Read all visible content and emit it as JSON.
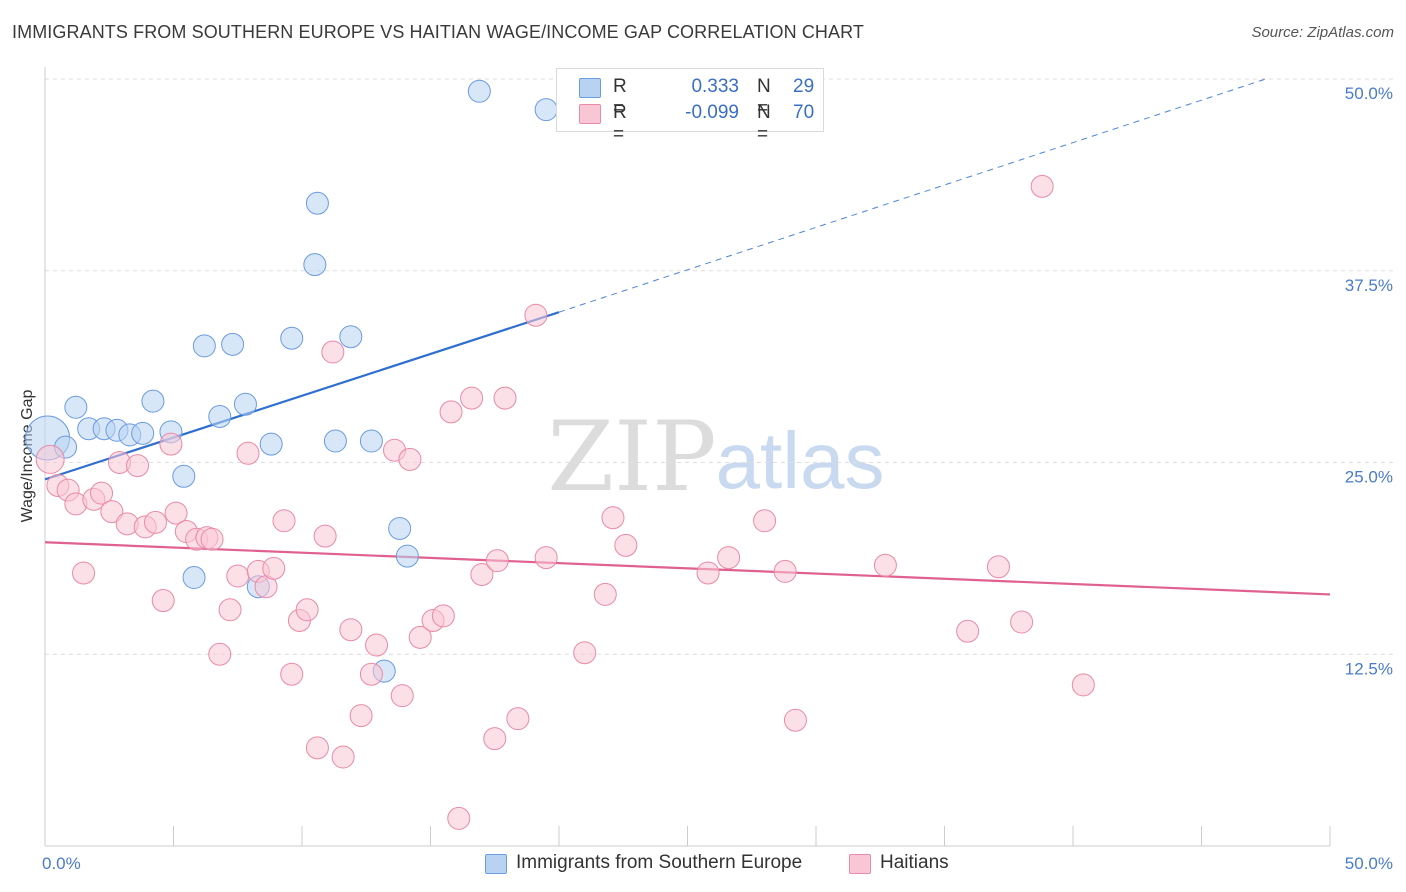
{
  "title": "IMMIGRANTS FROM SOUTHERN EUROPE VS HAITIAN WAGE/INCOME GAP CORRELATION CHART",
  "source": "Source: ZipAtlas.com",
  "watermark": {
    "zip": "ZIP",
    "atlas": "atlas"
  },
  "legend_top": [
    {
      "r_label": "R =",
      "r_value": "0.333",
      "n_label": "N =",
      "n_value": "29",
      "color": "#b8d3f2",
      "stroke": "#6b9be0"
    },
    {
      "r_label": "R =",
      "r_value": "-0.099",
      "n_label": "N =",
      "n_value": "70",
      "color": "#f9c6d5",
      "stroke": "#e98aa8"
    }
  ],
  "legend_bottom": [
    {
      "label": "Immigrants from Southern Europe",
      "color": "#b8d3f2",
      "stroke": "#6b9be0"
    },
    {
      "label": "Haitians",
      "color": "#f9c6d5",
      "stroke": "#e98aa8"
    }
  ],
  "chart_data": {
    "type": "scatter",
    "xlabel": "",
    "ylabel": "Wage/Income Gap",
    "xlim": [
      0,
      50
    ],
    "ylim": [
      0,
      50
    ],
    "x_tick_labels": [
      {
        "value": 0,
        "label": "0.0%"
      },
      {
        "value": 50,
        "label": "50.0%"
      }
    ],
    "y_tick_labels": [
      {
        "value": 12.5,
        "label": "12.5%"
      },
      {
        "value": 25,
        "label": "25.0%"
      },
      {
        "value": 37.5,
        "label": "37.5%"
      },
      {
        "value": 50,
        "label": "50.0%"
      }
    ],
    "x_minor_ticks": [
      5,
      10,
      15,
      20,
      25,
      30,
      35,
      40,
      45,
      50
    ],
    "grid": "horizontal dashed",
    "series": [
      {
        "name": "Immigrants from Southern Europe",
        "color": "#b8d3f2",
        "stroke": "#6b9be0",
        "points": [
          [
            0.1,
            26.6,
            22
          ],
          [
            0.8,
            26.0,
            11
          ],
          [
            1.2,
            28.6,
            11
          ],
          [
            1.7,
            27.2,
            11
          ],
          [
            2.3,
            27.2,
            11
          ],
          [
            2.8,
            27.1,
            11
          ],
          [
            3.3,
            26.8,
            11
          ],
          [
            3.8,
            26.9,
            11
          ],
          [
            4.2,
            29.0,
            11
          ],
          [
            4.9,
            27.0,
            11
          ],
          [
            5.4,
            24.1,
            11
          ],
          [
            5.8,
            17.5,
            11
          ],
          [
            6.2,
            32.6,
            11
          ],
          [
            6.8,
            28.0,
            11
          ],
          [
            7.3,
            32.7,
            11
          ],
          [
            7.8,
            28.8,
            11
          ],
          [
            8.3,
            16.9,
            11
          ],
          [
            8.8,
            26.2,
            11
          ],
          [
            9.6,
            33.1,
            11
          ],
          [
            10.5,
            37.9,
            11
          ],
          [
            10.6,
            41.9,
            11
          ],
          [
            11.3,
            26.4,
            11
          ],
          [
            11.9,
            33.2,
            11
          ],
          [
            12.7,
            26.4,
            11
          ],
          [
            13.2,
            11.4,
            11
          ],
          [
            13.8,
            20.7,
            11
          ],
          [
            14.1,
            18.9,
            11
          ],
          [
            16.9,
            49.2,
            11
          ],
          [
            19.5,
            48.0,
            11
          ]
        ]
      },
      {
        "name": "Haitians",
        "color": "#f9c6d5",
        "stroke": "#e98aa8",
        "points": [
          [
            0.2,
            25.2,
            14
          ],
          [
            0.5,
            23.5,
            11
          ],
          [
            0.9,
            23.2,
            11
          ],
          [
            1.2,
            22.3,
            11
          ],
          [
            1.5,
            17.8,
            11
          ],
          [
            1.9,
            22.6,
            11
          ],
          [
            2.2,
            23.0,
            11
          ],
          [
            2.6,
            21.8,
            11
          ],
          [
            2.9,
            25.0,
            11
          ],
          [
            3.2,
            21.0,
            11
          ],
          [
            3.6,
            24.8,
            11
          ],
          [
            3.9,
            20.8,
            11
          ],
          [
            4.3,
            21.1,
            11
          ],
          [
            4.6,
            16.0,
            11
          ],
          [
            4.9,
            26.2,
            11
          ],
          [
            5.1,
            21.7,
            11
          ],
          [
            5.5,
            20.5,
            11
          ],
          [
            5.9,
            20.0,
            11
          ],
          [
            6.3,
            20.1,
            11
          ],
          [
            6.5,
            20.0,
            11
          ],
          [
            6.8,
            12.5,
            11
          ],
          [
            7.2,
            15.4,
            11
          ],
          [
            7.5,
            17.6,
            11
          ],
          [
            7.9,
            25.6,
            11
          ],
          [
            8.3,
            17.9,
            11
          ],
          [
            8.6,
            16.9,
            11
          ],
          [
            8.9,
            18.1,
            11
          ],
          [
            9.3,
            21.2,
            11
          ],
          [
            9.6,
            11.2,
            11
          ],
          [
            9.9,
            14.7,
            11
          ],
          [
            10.2,
            15.4,
            11
          ],
          [
            10.6,
            6.4,
            11
          ],
          [
            10.9,
            20.2,
            11
          ],
          [
            11.2,
            32.2,
            11
          ],
          [
            11.6,
            5.8,
            11
          ],
          [
            11.9,
            14.1,
            11
          ],
          [
            12.3,
            8.5,
            11
          ],
          [
            12.7,
            11.2,
            11
          ],
          [
            12.9,
            13.1,
            11
          ],
          [
            13.6,
            25.8,
            11
          ],
          [
            13.9,
            9.8,
            11
          ],
          [
            14.2,
            25.2,
            11
          ],
          [
            14.6,
            13.6,
            11
          ],
          [
            15.1,
            14.7,
            11
          ],
          [
            15.5,
            15.0,
            11
          ],
          [
            15.8,
            28.3,
            11
          ],
          [
            16.1,
            1.8,
            11
          ],
          [
            16.6,
            29.2,
            11
          ],
          [
            17.0,
            17.7,
            11
          ],
          [
            17.5,
            7.0,
            11
          ],
          [
            17.6,
            18.6,
            11
          ],
          [
            17.9,
            29.2,
            11
          ],
          [
            18.4,
            8.3,
            11
          ],
          [
            19.5,
            18.8,
            11
          ],
          [
            19.1,
            34.6,
            11
          ],
          [
            21.0,
            12.6,
            11
          ],
          [
            21.8,
            16.4,
            11
          ],
          [
            22.1,
            21.4,
            11
          ],
          [
            22.6,
            19.6,
            11
          ],
          [
            25.8,
            17.8,
            11
          ],
          [
            26.6,
            18.8,
            11
          ],
          [
            28.0,
            21.2,
            11
          ],
          [
            28.8,
            17.9,
            11
          ],
          [
            29.2,
            8.2,
            11
          ],
          [
            32.7,
            18.3,
            11
          ],
          [
            35.9,
            14.0,
            11
          ],
          [
            37.1,
            18.2,
            11
          ],
          [
            38.0,
            14.6,
            11
          ],
          [
            38.8,
            43.0,
            11
          ],
          [
            40.4,
            10.5,
            11
          ]
        ]
      }
    ],
    "trend_lines": [
      {
        "series": "Immigrants from Southern Europe",
        "color": "#2f6fd0",
        "x0": 0,
        "y0": 23.9,
        "x1": 20.0,
        "y1": 34.8,
        "dash_to_x": 47.5,
        "dash_to_y": 50.0
      },
      {
        "series": "Haitians",
        "color": "#e0608f",
        "x0": 0,
        "y0": 19.8,
        "x1": 50,
        "y1": 16.4
      }
    ]
  }
}
